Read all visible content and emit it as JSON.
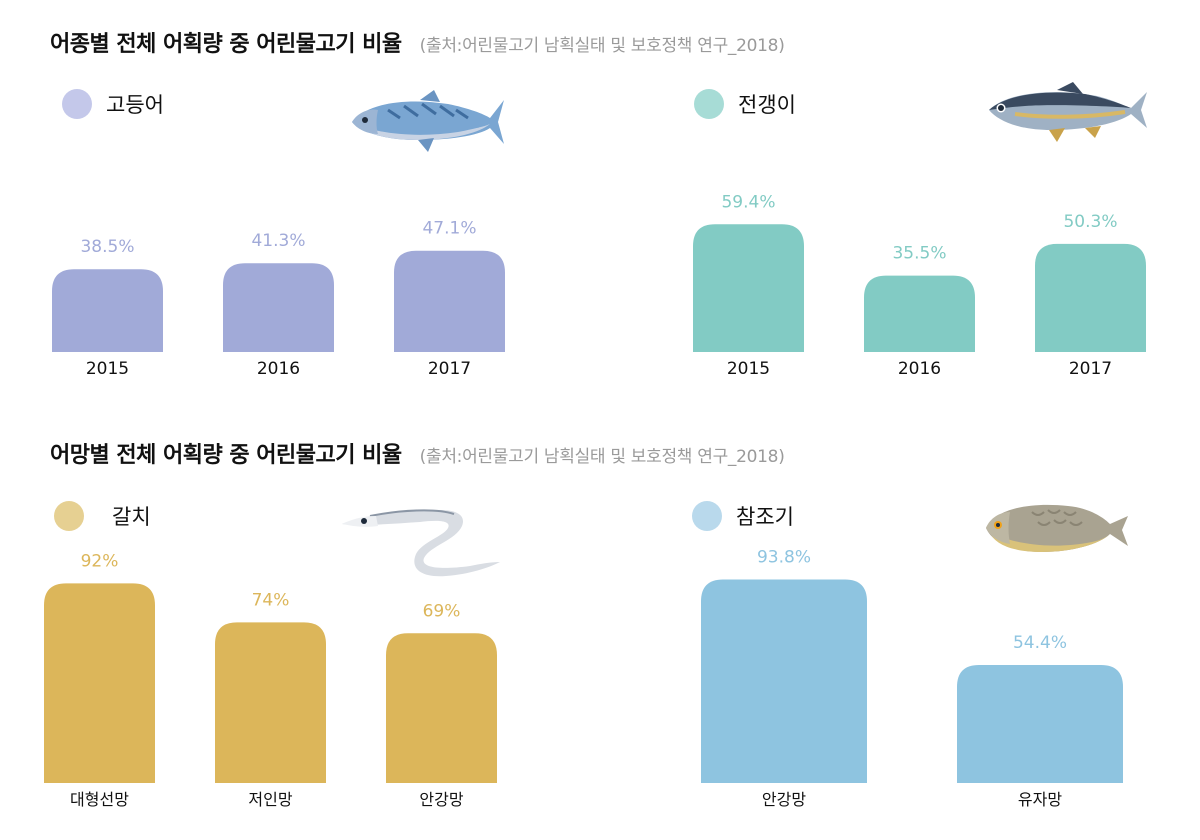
{
  "sections": [
    {
      "title": "어종별 전체 어획량 중 어린물고기 비율",
      "source": "(출처:어린물고기 남획실태 및 보호정책 연구_2018)"
    },
    {
      "title": "어망별 전체 어획량 중 어린물고기 비율",
      "source": "(출처:어린물고기 남획실태 및 보호정책 연구_2018)"
    }
  ],
  "chart_data": [
    {
      "type": "bar",
      "legend": "고등어",
      "color": "#a1aad8",
      "label_color": "#a1aad8",
      "categories": [
        "2015",
        "2016",
        "2017"
      ],
      "values": [
        38.5,
        41.3,
        47.1
      ],
      "value_labels": [
        "38.5%",
        "41.3%",
        "47.1%"
      ],
      "unit": "%",
      "icon": "mackerel-icon"
    },
    {
      "type": "bar",
      "legend": "전갱이",
      "color": "#82cbc4",
      "label_color": "#82cbc4",
      "categories": [
        "2015",
        "2016",
        "2017"
      ],
      "values": [
        59.4,
        35.5,
        50.3
      ],
      "value_labels": [
        "59.4%",
        "35.5%",
        "50.3%"
      ],
      "unit": "%",
      "icon": "horse-mackerel-icon"
    },
    {
      "type": "bar",
      "legend": "갈치",
      "color": "#dcb65a",
      "label_color": "#dcb65a",
      "categories": [
        "대형선망",
        "저인망",
        "안강망"
      ],
      "values": [
        92,
        74,
        69
      ],
      "value_labels": [
        "92%",
        "74%",
        "69%"
      ],
      "unit": "%",
      "icon": "hairtail-icon"
    },
    {
      "type": "bar",
      "legend": "참조기",
      "color": "#8ec4e0",
      "label_color": "#8ec4e0",
      "categories": [
        "안강망",
        "유자망"
      ],
      "values": [
        93.8,
        54.4
      ],
      "value_labels": [
        "93.8%",
        "54.4%"
      ],
      "unit": "%",
      "icon": "yellow-croaker-icon"
    }
  ]
}
